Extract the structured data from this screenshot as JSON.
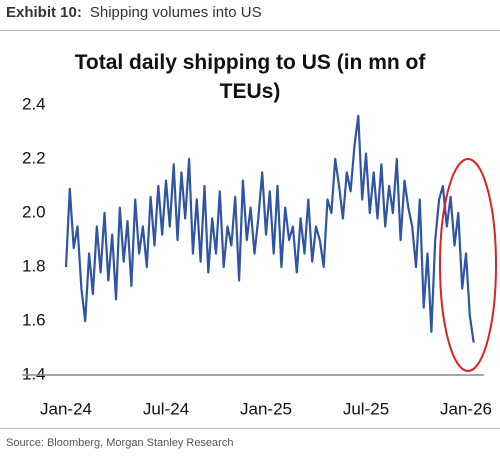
{
  "header": {
    "label": "Exhibit 10:",
    "title": "Shipping volumes into US"
  },
  "chart_data": {
    "type": "line",
    "title": "Total daily shipping to US (in mn of TEUs)",
    "categories": [
      "Jan-24",
      null,
      null,
      null,
      null,
      null,
      null,
      null,
      null,
      null,
      null,
      null,
      null,
      null,
      null,
      null,
      null,
      null,
      null,
      null,
      null,
      null,
      null,
      null,
      null,
      null,
      "Jul-24",
      null,
      null,
      null,
      null,
      null,
      null,
      null,
      null,
      null,
      null,
      null,
      null,
      null,
      null,
      null,
      null,
      null,
      null,
      null,
      null,
      null,
      null,
      null,
      null,
      null,
      "Jan-25",
      null,
      null,
      null,
      null,
      null,
      null,
      null,
      null,
      null,
      null,
      null,
      null,
      null,
      null,
      null,
      null,
      null,
      null,
      null,
      null,
      null,
      null,
      null,
      null,
      null,
      "Jul-25",
      null,
      null,
      null,
      null,
      null,
      null,
      null,
      null,
      null,
      null,
      null,
      null,
      null,
      null,
      null,
      null,
      null,
      null,
      null,
      null,
      null,
      null,
      null,
      null,
      null,
      "Jan-26",
      null,
      null
    ],
    "values": [
      1.8,
      2.09,
      1.87,
      1.95,
      1.72,
      1.6,
      1.85,
      1.7,
      1.95,
      1.78,
      2.0,
      1.75,
      1.92,
      1.68,
      2.02,
      1.82,
      1.97,
      1.73,
      2.05,
      1.85,
      1.95,
      1.8,
      2.06,
      1.88,
      2.1,
      1.92,
      2.12,
      1.95,
      2.18,
      1.9,
      2.15,
      1.98,
      2.2,
      1.85,
      2.05,
      1.82,
      2.1,
      1.78,
      1.98,
      1.85,
      2.08,
      1.8,
      1.95,
      1.88,
      2.06,
      1.75,
      2.12,
      1.9,
      2.02,
      1.85,
      1.98,
      2.15,
      1.92,
      2.08,
      1.85,
      2.1,
      1.8,
      2.02,
      1.9,
      1.95,
      1.78,
      1.98,
      1.85,
      2.05,
      1.82,
      1.95,
      1.9,
      1.8,
      2.05,
      2.0,
      2.2,
      2.1,
      1.98,
      2.15,
      2.08,
      2.25,
      2.36,
      2.05,
      2.22,
      2.0,
      2.15,
      1.98,
      2.18,
      1.95,
      2.1,
      2.0,
      2.2,
      1.9,
      2.12,
      2.02,
      1.95,
      1.8,
      2.05,
      1.65,
      1.85,
      1.56,
      1.9,
      2.05,
      2.1,
      1.95,
      2.06,
      1.88,
      2.0,
      1.72,
      1.85,
      1.62,
      1.52
    ],
    "color": "#2f55a4",
    "ylim": [
      1.4,
      2.4
    ],
    "yticks": [
      1.4,
      1.6,
      1.8,
      {
        "value": 2,
        "label": "2.0"
      },
      2.2,
      2.4
    ],
    "grid": false
  },
  "source": "Source: Bloomberg, Morgan Stanley Research"
}
